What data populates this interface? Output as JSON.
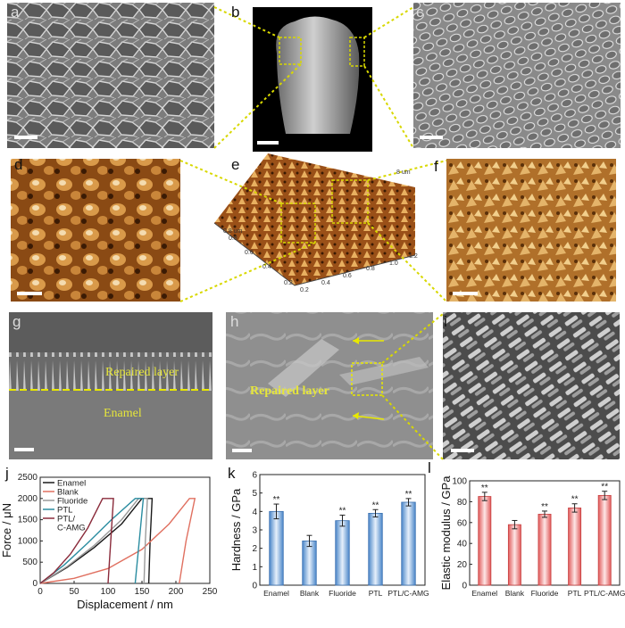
{
  "panels": {
    "a": {
      "label": "a"
    },
    "b": {
      "label": "b"
    },
    "c": {
      "label": "c"
    },
    "d": {
      "label": "d"
    },
    "e": {
      "label": "e",
      "axis_x": [
        "0.2",
        "0.4",
        "0.6",
        "0.8",
        "1.0",
        "1.2"
      ],
      "axis_y": [
        "0.2",
        "0.4",
        "0.6",
        "0.8"
      ],
      "z_top": "8 um",
      "unit_left": "0.8 um"
    },
    "f": {
      "label": "f"
    },
    "g": {
      "label": "g",
      "repaired": "Repaired layer",
      "enamel": "Enamel"
    },
    "h": {
      "label": "h",
      "repaired": "Repaired layer"
    },
    "i": {
      "label": "i"
    },
    "j": {
      "label": "j"
    },
    "k": {
      "label": "k"
    },
    "l": {
      "label": "l"
    }
  },
  "colors": {
    "yellow": "#d8d800",
    "bar_blue": "#7faee0",
    "bar_red": "#f08080",
    "sem_gray": "#8a8a8a",
    "afm_brown": "#b0702a"
  },
  "chart_data": [
    {
      "type": "line",
      "xlabel": "Displacement / nm",
      "ylabel": "Force / μN",
      "xlim": [
        0,
        250
      ],
      "ylim": [
        0,
        2500
      ],
      "xticks": [
        "0",
        "50",
        "100",
        "150",
        "200",
        "250"
      ],
      "yticks": [
        "0",
        "500",
        "1000",
        "1500",
        "2000",
        "2500"
      ],
      "legend_position": "top-left",
      "series": [
        {
          "name": "Enamel",
          "color": "#1a1a1a",
          "x": [
            0,
            40,
            80,
            120,
            150,
            158,
            165,
            162,
            160
          ],
          "y": [
            0,
            380,
            850,
            1400,
            2000,
            2000,
            2000,
            1000,
            0
          ]
        },
        {
          "name": "Blank",
          "color": "#e07060",
          "x": [
            0,
            50,
            100,
            150,
            190,
            220,
            228,
            215,
            205
          ],
          "y": [
            0,
            120,
            350,
            800,
            1400,
            2000,
            2000,
            1000,
            0
          ]
        },
        {
          "name": "Fluoride",
          "color": "#9a9a9a",
          "x": [
            0,
            40,
            80,
            120,
            145,
            152,
            158,
            155,
            153
          ],
          "y": [
            0,
            400,
            900,
            1500,
            2000,
            2000,
            2000,
            1000,
            0
          ]
        },
        {
          "name": "PTL",
          "color": "#2a8ca0",
          "x": [
            0,
            35,
            70,
            105,
            140,
            148,
            152,
            146,
            140
          ],
          "y": [
            0,
            430,
            950,
            1500,
            2000,
            2000,
            2000,
            1000,
            0
          ]
        },
        {
          "name": "PTL/\nC-AMG",
          "label_lines": [
            "PTL/",
            "C-AMG"
          ],
          "color": "#8a2a3a",
          "x": [
            0,
            20,
            45,
            70,
            92,
            100,
            108,
            104,
            100
          ],
          "y": [
            0,
            250,
            700,
            1300,
            2000,
            2000,
            2000,
            1000,
            0
          ]
        }
      ]
    },
    {
      "type": "bar",
      "ylabel": "Hardness / GPa",
      "ylim": [
        0,
        6
      ],
      "yticks": [
        "0",
        "1",
        "2",
        "3",
        "4",
        "5",
        "6"
      ],
      "categories": [
        "Enamel",
        "Blank",
        "Fluoride",
        "PTL",
        "PTL/C-AMG"
      ],
      "values": [
        4.0,
        2.4,
        3.5,
        3.9,
        4.5
      ],
      "errors": [
        0.4,
        0.3,
        0.3,
        0.2,
        0.2
      ],
      "annotations": [
        "**",
        "",
        "**",
        "**",
        "**"
      ]
    },
    {
      "type": "bar",
      "ylabel": "Elastic modulus / GPa",
      "ylim": [
        0,
        100
      ],
      "yticks": [
        "0",
        "20",
        "40",
        "60",
        "80",
        "100"
      ],
      "categories": [
        "Enamel",
        "Blank",
        "Fluoride",
        "PTL",
        "PTL/C-AMG"
      ],
      "values": [
        85,
        58,
        68,
        74,
        86
      ],
      "errors": [
        4,
        4,
        3,
        4,
        4
      ],
      "annotations": [
        "**",
        "",
        "**",
        "**",
        "**"
      ]
    }
  ]
}
